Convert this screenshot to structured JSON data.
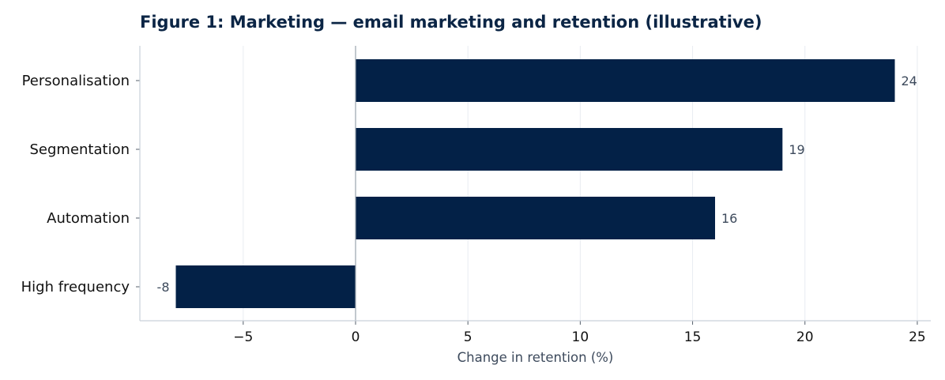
{
  "chart_data": {
    "type": "bar",
    "orientation": "horizontal",
    "title": "Figure 1: Marketing — email marketing and retention (illustrative)",
    "xlabel": "Change in retention (%)",
    "ylabel": "",
    "categories": [
      "Personalisation",
      "Segmentation",
      "Automation",
      "High frequency"
    ],
    "values": [
      24,
      19,
      16,
      -8
    ],
    "value_labels": [
      "24",
      "19",
      "16",
      "-8"
    ],
    "xlim": [
      -9.6,
      25.6
    ],
    "xticks": [
      -5,
      0,
      5,
      10,
      15,
      20,
      25
    ],
    "xtick_labels": [
      "−5",
      "0",
      "5",
      "10",
      "15",
      "20",
      "25"
    ],
    "grid": "vertical",
    "zero_line": true,
    "colors": {
      "bar": "#032147",
      "grid": "#e8ecf1",
      "axis": "#c9d0d9",
      "zero_line": "#9aa3ae",
      "title": "#0b2545",
      "value_label": "#3d4a5c"
    }
  }
}
